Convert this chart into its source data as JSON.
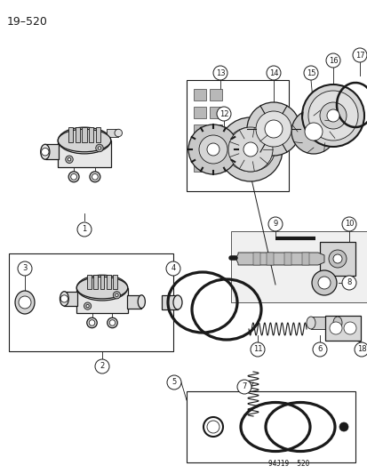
{
  "title": "19–520",
  "background_color": "#ffffff",
  "line_color": "#1a1a1a",
  "gray_color": "#888888",
  "light_gray": "#cccccc",
  "part_number_label": "94J19  520",
  "figsize": [
    4.14,
    5.33
  ],
  "dpi": 100
}
